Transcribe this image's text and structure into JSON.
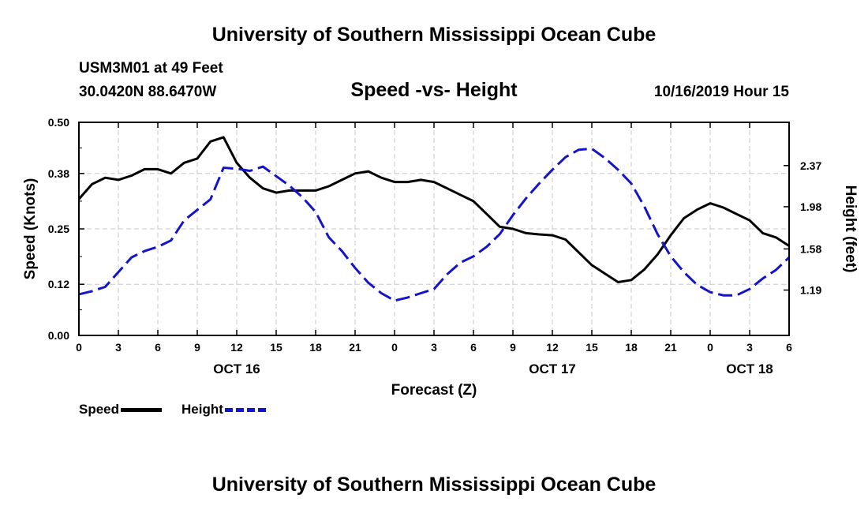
{
  "header": {
    "title": "University of Southern Mississippi Ocean Cube",
    "station": "USM3M01 at 49 Feet",
    "coordinates": "30.0420N 88.6470W",
    "subtitle": "Speed -vs- Height",
    "datetime": "10/16/2019 Hour 15"
  },
  "footer": {
    "title": "University of Southern Mississippi Ocean Cube"
  },
  "legend": {
    "speed_label": "Speed",
    "height_label": "Height",
    "speed_color": "#000000",
    "height_color": "#1414c8"
  },
  "chart_data": {
    "type": "line",
    "title": "Speed -vs- Height",
    "xlabel": "Forecast (Z)",
    "ylabel_left": "Speed (Knots)",
    "ylabel_right": "Height (feet)",
    "grid": true,
    "x_range": [
      0,
      54
    ],
    "x_ticks": [
      0,
      3,
      6,
      9,
      12,
      15,
      18,
      21,
      24,
      27,
      30,
      33,
      36,
      39,
      42,
      45,
      48,
      51,
      54
    ],
    "x_tick_labels": [
      "0",
      "3",
      "6",
      "9",
      "12",
      "15",
      "18",
      "21",
      "0",
      "3",
      "6",
      "9",
      "12",
      "15",
      "18",
      "21",
      "0",
      "3",
      "6"
    ],
    "date_labels": [
      {
        "x": 12,
        "label": "OCT 16"
      },
      {
        "x": 36,
        "label": "OCT 17"
      },
      {
        "x": 51,
        "label": "OCT 18"
      }
    ],
    "ylim_left": [
      0,
      0.5
    ],
    "y_ticks_left": [
      0.0,
      0.12,
      0.25,
      0.38,
      0.5
    ],
    "y_tick_labels_left": [
      "0.00",
      "0.12",
      "0.25",
      "0.38",
      "0.50"
    ],
    "ylim_right": [
      0.76,
      2.78
    ],
    "y_ticks_right": [
      1.19,
      1.58,
      1.98,
      2.37
    ],
    "y_tick_labels_right": [
      "1.19",
      "1.58",
      "1.98",
      "2.37"
    ],
    "series": [
      {
        "name": "Speed",
        "axis": "left",
        "x": [
          0,
          1,
          2,
          3,
          4,
          5,
          6,
          7,
          8,
          9,
          10,
          11,
          12,
          13,
          14,
          15,
          16,
          17,
          18,
          19,
          20,
          21,
          22,
          23,
          24,
          25,
          26,
          27,
          28,
          29,
          30,
          31,
          32,
          33,
          34,
          35,
          36,
          37,
          38,
          39,
          40,
          41,
          42,
          43,
          44,
          45,
          46,
          47,
          48,
          49,
          50,
          51,
          52,
          53,
          54
        ],
        "values": [
          0.32,
          0.355,
          0.37,
          0.365,
          0.375,
          0.39,
          0.39,
          0.38,
          0.405,
          0.415,
          0.455,
          0.465,
          0.405,
          0.37,
          0.345,
          0.335,
          0.34,
          0.34,
          0.34,
          0.35,
          0.365,
          0.38,
          0.385,
          0.37,
          0.36,
          0.36,
          0.365,
          0.36,
          0.345,
          0.33,
          0.315,
          0.285,
          0.255,
          0.25,
          0.24,
          0.237,
          0.235,
          0.225,
          0.195,
          0.165,
          0.145,
          0.125,
          0.13,
          0.155,
          0.19,
          0.235,
          0.275,
          0.295,
          0.31,
          0.3,
          0.285,
          0.27,
          0.24,
          0.23,
          0.21
        ]
      },
      {
        "name": "Height",
        "axis": "right",
        "x": [
          0,
          1,
          2,
          3,
          4,
          5,
          6,
          7,
          8,
          9,
          10,
          11,
          12,
          13,
          14,
          15,
          16,
          17,
          18,
          19,
          20,
          21,
          22,
          23,
          24,
          25,
          26,
          27,
          28,
          29,
          30,
          31,
          32,
          33,
          34,
          35,
          36,
          37,
          38,
          39,
          40,
          41,
          42,
          43,
          44,
          45,
          46,
          47,
          48,
          49,
          50,
          51,
          52,
          53,
          54
        ],
        "values": [
          1.15,
          1.18,
          1.22,
          1.36,
          1.5,
          1.56,
          1.6,
          1.66,
          1.85,
          1.95,
          2.05,
          2.35,
          2.34,
          2.32,
          2.36,
          2.27,
          2.18,
          2.07,
          1.93,
          1.69,
          1.56,
          1.4,
          1.26,
          1.16,
          1.09,
          1.12,
          1.16,
          1.2,
          1.34,
          1.45,
          1.51,
          1.6,
          1.72,
          1.9,
          2.06,
          2.2,
          2.33,
          2.45,
          2.52,
          2.53,
          2.44,
          2.33,
          2.2,
          1.98,
          1.72,
          1.51,
          1.36,
          1.24,
          1.17,
          1.14,
          1.14,
          1.2,
          1.3,
          1.38,
          1.5
        ]
      }
    ]
  }
}
